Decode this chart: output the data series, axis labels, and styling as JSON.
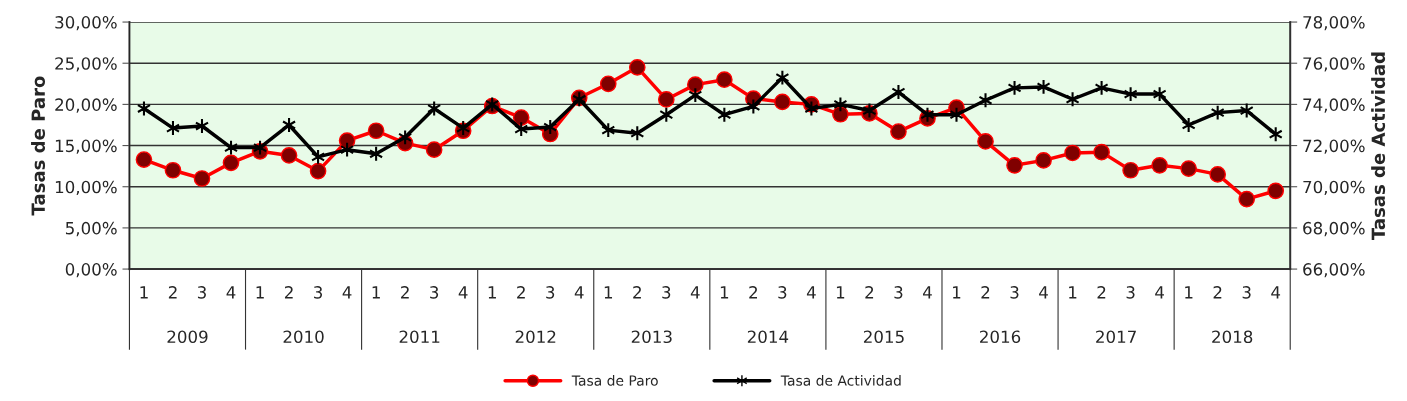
{
  "chart_data": {
    "type": "line",
    "categories": [
      "1",
      "2",
      "3",
      "4",
      "1",
      "2",
      "3",
      "4",
      "1",
      "2",
      "3",
      "4",
      "1",
      "2",
      "3",
      "4",
      "1",
      "2",
      "3",
      "4",
      "1",
      "2",
      "3",
      "4",
      "1",
      "2",
      "3",
      "4",
      "1",
      "2",
      "3",
      "4",
      "1",
      "2",
      "3",
      "4",
      "1",
      "2",
      "3",
      "4"
    ],
    "annotations": [
      "2009",
      "2010",
      "2011",
      "2012",
      "2013",
      "2014",
      "2015",
      "2016",
      "2017",
      "2018"
    ],
    "ylabel": "Tasas de Paro",
    "y2label": "Tasas de Actividad",
    "series": [
      {
        "name": "Tasa de Paro",
        "color": "#ff0000",
        "marker": "circle",
        "values": [
          13.3,
          12.0,
          11.0,
          12.9,
          14.3,
          13.8,
          11.9,
          15.6,
          16.8,
          15.3,
          14.5,
          16.8,
          19.8,
          18.4,
          16.4,
          20.8,
          22.5,
          24.5,
          20.6,
          22.4,
          23.0,
          20.7,
          20.3,
          20.0,
          18.8,
          18.9,
          16.7,
          18.3,
          19.6,
          15.5,
          12.6,
          13.2,
          14.1,
          14.2,
          12.0,
          12.6,
          12.2,
          11.5,
          8.5,
          9.5
        ]
      },
      {
        "name": "Tasa de Actividad",
        "color": "#000000",
        "marker": "cross",
        "axis": "y2",
        "values": [
          73.8,
          72.85,
          72.95,
          71.9,
          71.9,
          73.0,
          71.45,
          71.8,
          71.6,
          72.4,
          73.8,
          72.85,
          74.0,
          72.8,
          72.9,
          74.25,
          72.75,
          72.6,
          73.5,
          74.45,
          73.5,
          73.9,
          75.3,
          73.8,
          74.0,
          73.7,
          74.6,
          73.5,
          73.5,
          74.2,
          74.8,
          74.85,
          74.25,
          74.8,
          74.5,
          74.5,
          73.0,
          73.6,
          73.7,
          72.55
        ]
      }
    ],
    "ylim": [
      0,
      30
    ],
    "yticks": [
      {
        "value": 0,
        "label": "0,00%"
      },
      {
        "value": 5,
        "label": "5,00%"
      },
      {
        "value": 10,
        "label": "10,00%"
      },
      {
        "value": 15,
        "label": "15,00%"
      },
      {
        "value": 20,
        "label": "20,00%"
      },
      {
        "value": 25,
        "label": "25,00%"
      },
      {
        "value": 30,
        "label": "30,00%"
      }
    ],
    "y2lim": [
      66,
      78
    ],
    "y2ticks": [
      {
        "value": 66,
        "label": "66,00%"
      },
      {
        "value": 68,
        "label": "68,00%"
      },
      {
        "value": 70,
        "label": "70,00%"
      },
      {
        "value": 72,
        "label": "72,00%"
      },
      {
        "value": 74,
        "label": "74,00%"
      },
      {
        "value": 76,
        "label": "76,00%"
      },
      {
        "value": 78,
        "label": "78,00%"
      }
    ],
    "grid": "y",
    "legend": "bottom",
    "line_style": "solid"
  }
}
